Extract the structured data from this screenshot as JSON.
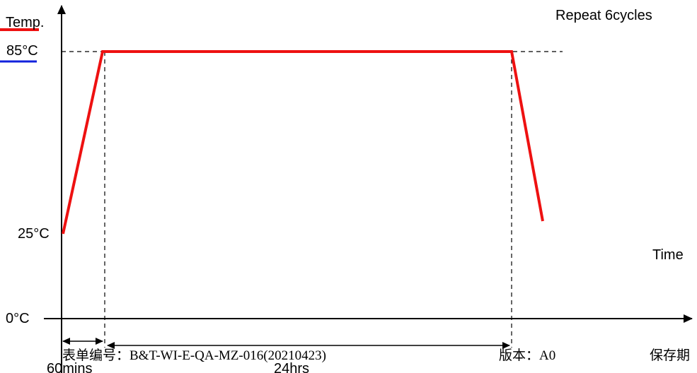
{
  "labels": {
    "y_axis": "Temp.",
    "temp_high": "85°C",
    "temp_low": "25°C",
    "temp_zero": "0°C",
    "x_axis": "Time",
    "repeat": "Repeat 6cycles",
    "ramp_duration": "60mins",
    "dwell_duration": "24hrs"
  },
  "footer": {
    "form_no": "表单编号：B&T-WI-E-QA-MZ-016(20210423)",
    "version": "版本：A0",
    "retention": "保存期"
  },
  "colors": {
    "profile": "#ee1111",
    "legend_top": "#ee1111",
    "legend_bottom": "#1122dd",
    "axis": "#000000"
  }
}
